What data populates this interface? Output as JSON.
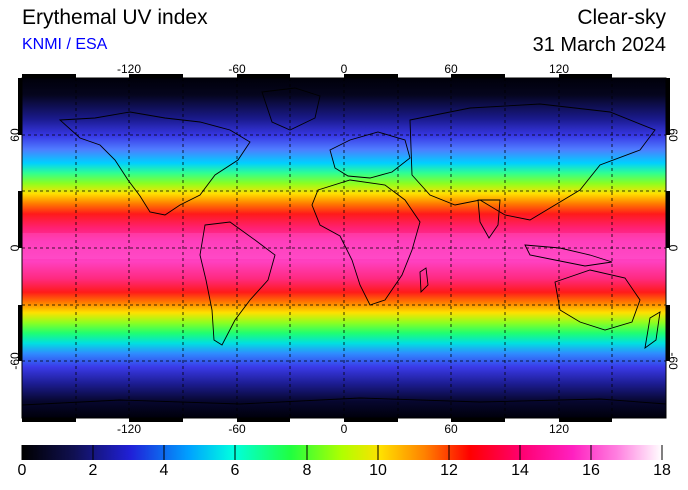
{
  "header": {
    "title": "Erythemal UV index",
    "credit": "KNMI / ESA",
    "condition": "Clear-sky",
    "date": "31 March 2024"
  },
  "map": {
    "lon_labels": [
      "-120",
      "-60",
      "0",
      "60",
      "120"
    ],
    "lat_labels": [
      "60",
      "0",
      "-60"
    ]
  },
  "colorbar": {
    "ticks": [
      "0",
      "2",
      "4",
      "6",
      "8",
      "10",
      "12",
      "14",
      "16",
      "18"
    ]
  }
}
